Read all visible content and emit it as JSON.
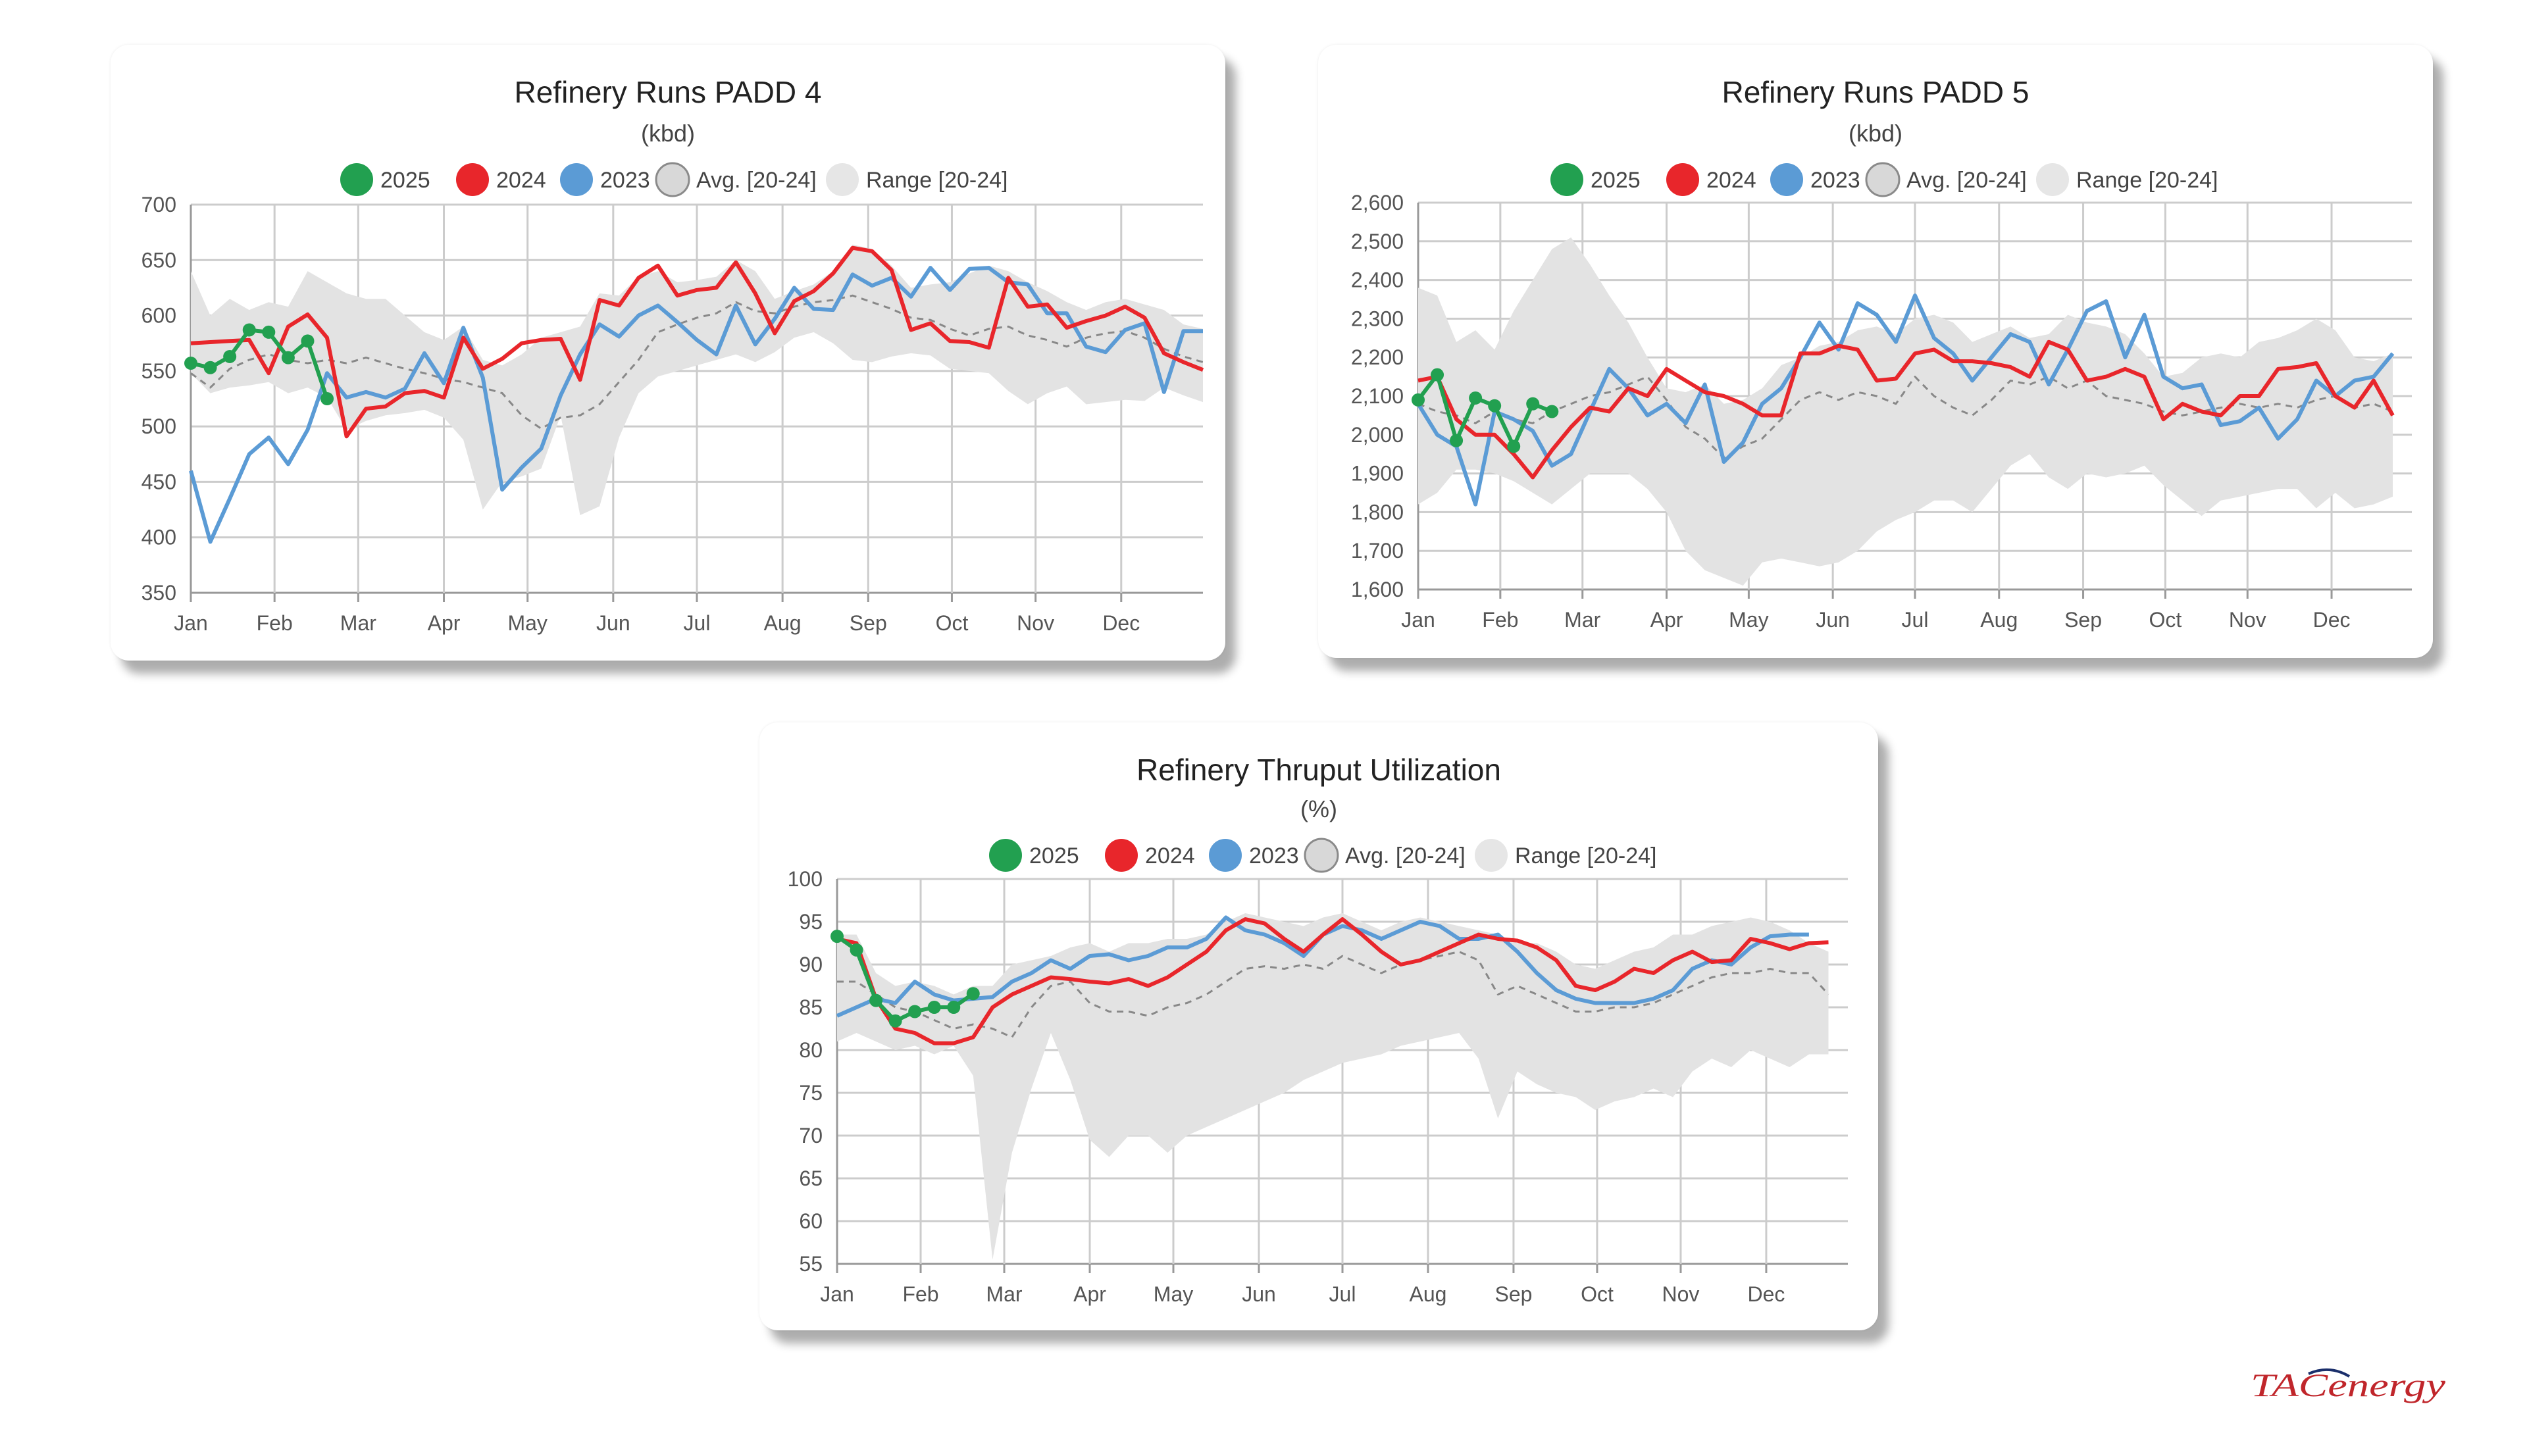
{
  "colors": {
    "s2025": "#22a050",
    "s2024": "#e8262b",
    "s2023": "#5b9bd5",
    "avg": "#888888",
    "range": "#e3e3e3"
  },
  "legend": [
    "2025",
    "2024",
    "2023",
    "Avg. [20-24]",
    "Range [20-24]"
  ],
  "months": [
    "Jan",
    "Feb",
    "Mar",
    "Apr",
    "May",
    "Jun",
    "Jul",
    "Aug",
    "Sep",
    "Oct",
    "Nov",
    "Dec"
  ],
  "logo": "TACenergy",
  "chart_data": [
    {
      "id": "padd4",
      "type": "line",
      "title": "Refinery Runs PADD 4",
      "subtitle": "(kbd)",
      "ylim": [
        350,
        700
      ],
      "ystep": 50,
      "ytick_labels": [
        "350",
        "400",
        "450",
        "500",
        "550",
        "600",
        "650",
        "700"
      ],
      "weeks": 53,
      "series": [
        {
          "name": "2025",
          "values": [
            557,
            553,
            563,
            587,
            585,
            562,
            577,
            525
          ]
        },
        {
          "name": "2024",
          "values": [
            575,
            576,
            577,
            578,
            548,
            590,
            601,
            580,
            491,
            516,
            518,
            530,
            532,
            526,
            580,
            552,
            561,
            575,
            578,
            579,
            542,
            614,
            609,
            634,
            645,
            618,
            623,
            625,
            648,
            620,
            584,
            613,
            622,
            638,
            661,
            658,
            641,
            587,
            593,
            577,
            576,
            571,
            634,
            608,
            610,
            589,
            595,
            600,
            608,
            598,
            566,
            558,
            551
          ]
        },
        {
          "name": "2023",
          "values": [
            460,
            396,
            435,
            475,
            490,
            466,
            497,
            548,
            526,
            531,
            526,
            534,
            566,
            539,
            589,
            544,
            443,
            463,
            480,
            528,
            565,
            592,
            581,
            600,
            609,
            594,
            578,
            565,
            609,
            574,
            597,
            625,
            606,
            605,
            637,
            627,
            634,
            617,
            643,
            623,
            642,
            643,
            630,
            628,
            602,
            602,
            572,
            567,
            587,
            593,
            531,
            586,
            586
          ]
        },
        {
          "name": "Avg. [20-24]",
          "values": [
            548,
            535,
            552,
            560,
            565,
            560,
            557,
            560,
            557,
            562,
            557,
            552,
            548,
            543,
            540,
            535,
            530,
            510,
            498,
            508,
            510,
            520,
            540,
            560,
            585,
            592,
            598,
            602,
            612,
            604,
            602,
            608,
            612,
            614,
            618,
            612,
            606,
            598,
            596,
            588,
            582,
            588,
            590,
            582,
            578,
            572,
            580,
            584,
            586,
            580,
            570,
            563,
            558
          ]
        },
        {
          "name": "Range [20-24]",
          "low": [
            548,
            530,
            535,
            537,
            540,
            530,
            535,
            526,
            497,
            505,
            510,
            512,
            515,
            508,
            488,
            425,
            450,
            455,
            462,
            510,
            420,
            428,
            490,
            530,
            545,
            550,
            555,
            560,
            565,
            558,
            567,
            580,
            585,
            575,
            560,
            558,
            563,
            566,
            564,
            552,
            550,
            548,
            532,
            520,
            530,
            536,
            520,
            522,
            524,
            523,
            535,
            528,
            522
          ],
          "high": [
            640,
            600,
            615,
            605,
            612,
            608,
            640,
            630,
            620,
            615,
            615,
            600,
            585,
            578,
            590,
            560,
            555,
            565,
            580,
            585,
            590,
            620,
            618,
            635,
            640,
            630,
            632,
            635,
            650,
            640,
            615,
            622,
            628,
            640,
            664,
            660,
            645,
            625,
            628,
            630,
            638,
            645,
            640,
            630,
            622,
            612,
            605,
            612,
            615,
            610,
            605,
            592,
            588
          ]
        }
      ]
    },
    {
      "id": "padd5",
      "type": "line",
      "title": "Refinery Runs PADD 5",
      "subtitle": "(kbd)",
      "ylim": [
        1600,
        2600
      ],
      "ystep": 100,
      "ytick_labels": [
        "1,600",
        "1,700",
        "1,800",
        "1,900",
        "2,000",
        "2,100",
        "2,200",
        "2,300",
        "2,400",
        "2,500",
        "2,600"
      ],
      "weeks": 53,
      "series": [
        {
          "name": "2025",
          "values": [
            2090,
            2155,
            1985,
            2095,
            2075,
            1970,
            2080,
            2060
          ]
        },
        {
          "name": "2024",
          "values": [
            2140,
            2150,
            2040,
            2000,
            2000,
            1950,
            1890,
            1960,
            2020,
            2070,
            2060,
            2120,
            2100,
            2170,
            2140,
            2110,
            2100,
            2080,
            2050,
            2050,
            2210,
            2210,
            2230,
            2220,
            2140,
            2145,
            2210,
            2220,
            2190,
            2190,
            2185,
            2175,
            2150,
            2240,
            2220,
            2140,
            2150,
            2170,
            2150,
            2040,
            2080,
            2060,
            2050,
            2100,
            2100,
            2170,
            2175,
            2185,
            2100,
            2070,
            2140,
            2050
          ]
        },
        {
          "name": "2023",
          "values": [
            2080,
            2000,
            1970,
            1820,
            2060,
            2040,
            2010,
            1920,
            1950,
            2060,
            2170,
            2120,
            2050,
            2080,
            2030,
            2130,
            1930,
            1980,
            2080,
            2120,
            2200,
            2290,
            2220,
            2340,
            2310,
            2240,
            2360,
            2250,
            2210,
            2140,
            2200,
            2260,
            2240,
            2130,
            2220,
            2320,
            2345,
            2200,
            2310,
            2150,
            2120,
            2130,
            2025,
            2035,
            2070,
            1990,
            2040,
            2140,
            2100,
            2140,
            2150,
            2210
          ]
        },
        {
          "name": "Avg. [20-24]",
          "values": [
            2080,
            2060,
            2050,
            2030,
            2060,
            2040,
            2030,
            2060,
            2080,
            2100,
            2110,
            2130,
            2150,
            2090,
            2020,
            1990,
            1940,
            1970,
            1990,
            2040,
            2090,
            2110,
            2090,
            2110,
            2100,
            2080,
            2150,
            2100,
            2070,
            2050,
            2090,
            2140,
            2130,
            2150,
            2120,
            2140,
            2100,
            2090,
            2080,
            2060,
            2050,
            2060,
            2070,
            2080,
            2070,
            2080,
            2070,
            2090,
            2100,
            2070,
            2080,
            2060
          ]
        },
        {
          "name": "Range [20-24]",
          "low": [
            1820,
            1850,
            1910,
            1910,
            1900,
            1880,
            1850,
            1820,
            1860,
            1900,
            1900,
            1900,
            1860,
            1800,
            1700,
            1650,
            1630,
            1610,
            1670,
            1680,
            1670,
            1660,
            1670,
            1700,
            1750,
            1780,
            1800,
            1830,
            1830,
            1800,
            1860,
            1920,
            1950,
            1890,
            1860,
            1900,
            1890,
            1900,
            1920,
            1870,
            1830,
            1790,
            1830,
            1840,
            1850,
            1860,
            1860,
            1810,
            1850,
            1810,
            1820,
            1840
          ],
          "high": [
            2380,
            2360,
            2240,
            2270,
            2220,
            2320,
            2400,
            2480,
            2510,
            2440,
            2360,
            2290,
            2200,
            2120,
            2110,
            2130,
            2080,
            2090,
            2120,
            2180,
            2200,
            2230,
            2240,
            2270,
            2280,
            2260,
            2300,
            2310,
            2290,
            2240,
            2260,
            2280,
            2250,
            2260,
            2310,
            2290,
            2280,
            2260,
            2210,
            2150,
            2160,
            2200,
            2210,
            2200,
            2240,
            2250,
            2270,
            2300,
            2270,
            2200,
            2190,
            2210
          ]
        }
      ]
    },
    {
      "id": "util",
      "type": "line",
      "title": "Refinery Thruput Utilization",
      "subtitle": "(%)",
      "ylim": [
        55,
        100
      ],
      "ystep": 5,
      "ytick_labels": [
        "55",
        "60",
        "65",
        "70",
        "75",
        "80",
        "85",
        "90",
        "95",
        "100"
      ],
      "weeks": 53,
      "series": [
        {
          "name": "2025",
          "values": [
            93.3,
            91.7,
            85.8,
            83.4,
            84.5,
            85.0,
            85.0,
            86.6
          ]
        },
        {
          "name": "2024",
          "values": [
            93.0,
            92.5,
            86.0,
            82.5,
            82.0,
            80.8,
            80.8,
            81.5,
            85.0,
            86.5,
            87.5,
            88.5,
            88.3,
            88.0,
            87.8,
            88.3,
            87.5,
            88.5,
            90.0,
            91.5,
            94.0,
            95.3,
            94.8,
            93.0,
            91.5,
            93.5,
            95.3,
            93.5,
            91.5,
            90.0,
            90.5,
            91.5,
            92.5,
            93.5,
            93.0,
            92.8,
            92.0,
            90.5,
            87.5,
            87.0,
            88.0,
            89.5,
            89.0,
            90.5,
            91.5,
            90.3,
            90.5,
            93.0,
            92.5,
            91.8,
            92.5,
            92.6
          ]
        },
        {
          "name": "2023",
          "values": [
            84.0,
            85.0,
            86.0,
            85.5,
            88.0,
            86.5,
            85.8,
            86.0,
            86.2,
            88.0,
            89.0,
            90.5,
            89.5,
            91.0,
            91.2,
            90.5,
            91.0,
            92.0,
            92.0,
            93.0,
            95.5,
            94.0,
            93.5,
            92.5,
            91.0,
            93.5,
            94.5,
            94.0,
            93.0,
            94.0,
            95.0,
            94.5,
            93.0,
            93.0,
            93.5,
            91.5,
            89.0,
            87.0,
            86.0,
            85.5,
            85.5,
            85.5,
            86.0,
            87.0,
            89.5,
            90.5,
            90.0,
            92.0,
            93.3,
            93.5,
            93.5
          ]
        },
        {
          "name": "Avg. [20-24]",
          "values": [
            88.0,
            88.0,
            86.5,
            85.0,
            84.5,
            83.5,
            82.5,
            83.0,
            82.5,
            81.5,
            85.0,
            87.5,
            88.0,
            85.5,
            84.5,
            84.5,
            84.0,
            85.0,
            85.5,
            86.5,
            88.0,
            89.5,
            89.8,
            89.5,
            90.0,
            89.5,
            91.0,
            90.0,
            89.0,
            90.0,
            90.5,
            91.0,
            91.5,
            90.5,
            86.5,
            87.5,
            86.5,
            85.5,
            84.5,
            84.5,
            85.0,
            85.0,
            85.5,
            86.5,
            87.5,
            88.5,
            89.0,
            89.0,
            89.5,
            89.0,
            89.0,
            86.5
          ]
        },
        {
          "name": "Range [20-24]",
          "low": [
            81.0,
            82.0,
            81.0,
            80.0,
            80.5,
            79.5,
            80.5,
            77.0,
            55.5,
            68.0,
            75.5,
            82.0,
            76.5,
            69.5,
            67.5,
            70.0,
            70.0,
            68.0,
            70.0,
            71.0,
            72.0,
            73.0,
            74.0,
            75.0,
            76.5,
            77.5,
            78.5,
            79.0,
            79.5,
            80.5,
            81.0,
            81.5,
            82.0,
            79.0,
            72.0,
            77.5,
            76.0,
            75.0,
            74.5,
            73.0,
            74.0,
            74.5,
            75.5,
            74.5,
            77.5,
            79.0,
            78.0,
            80.0,
            79.0,
            78.0,
            79.5,
            79.5
          ],
          "high": [
            93.5,
            93.5,
            89.0,
            87.5,
            88.0,
            87.5,
            86.5,
            87.5,
            87.5,
            90.0,
            90.5,
            91.0,
            92.0,
            92.5,
            91.5,
            92.5,
            92.5,
            93.0,
            93.0,
            93.5,
            95.0,
            96.0,
            95.5,
            95.0,
            94.5,
            95.5,
            96.0,
            95.0,
            94.0,
            95.0,
            95.5,
            95.0,
            94.5,
            94.0,
            93.5,
            92.5,
            92.5,
            91.5,
            90.0,
            89.5,
            90.5,
            91.5,
            92.0,
            93.5,
            93.5,
            94.5,
            95.0,
            95.5,
            95.0,
            94.0,
            92.5,
            91.5
          ]
        }
      ]
    }
  ]
}
